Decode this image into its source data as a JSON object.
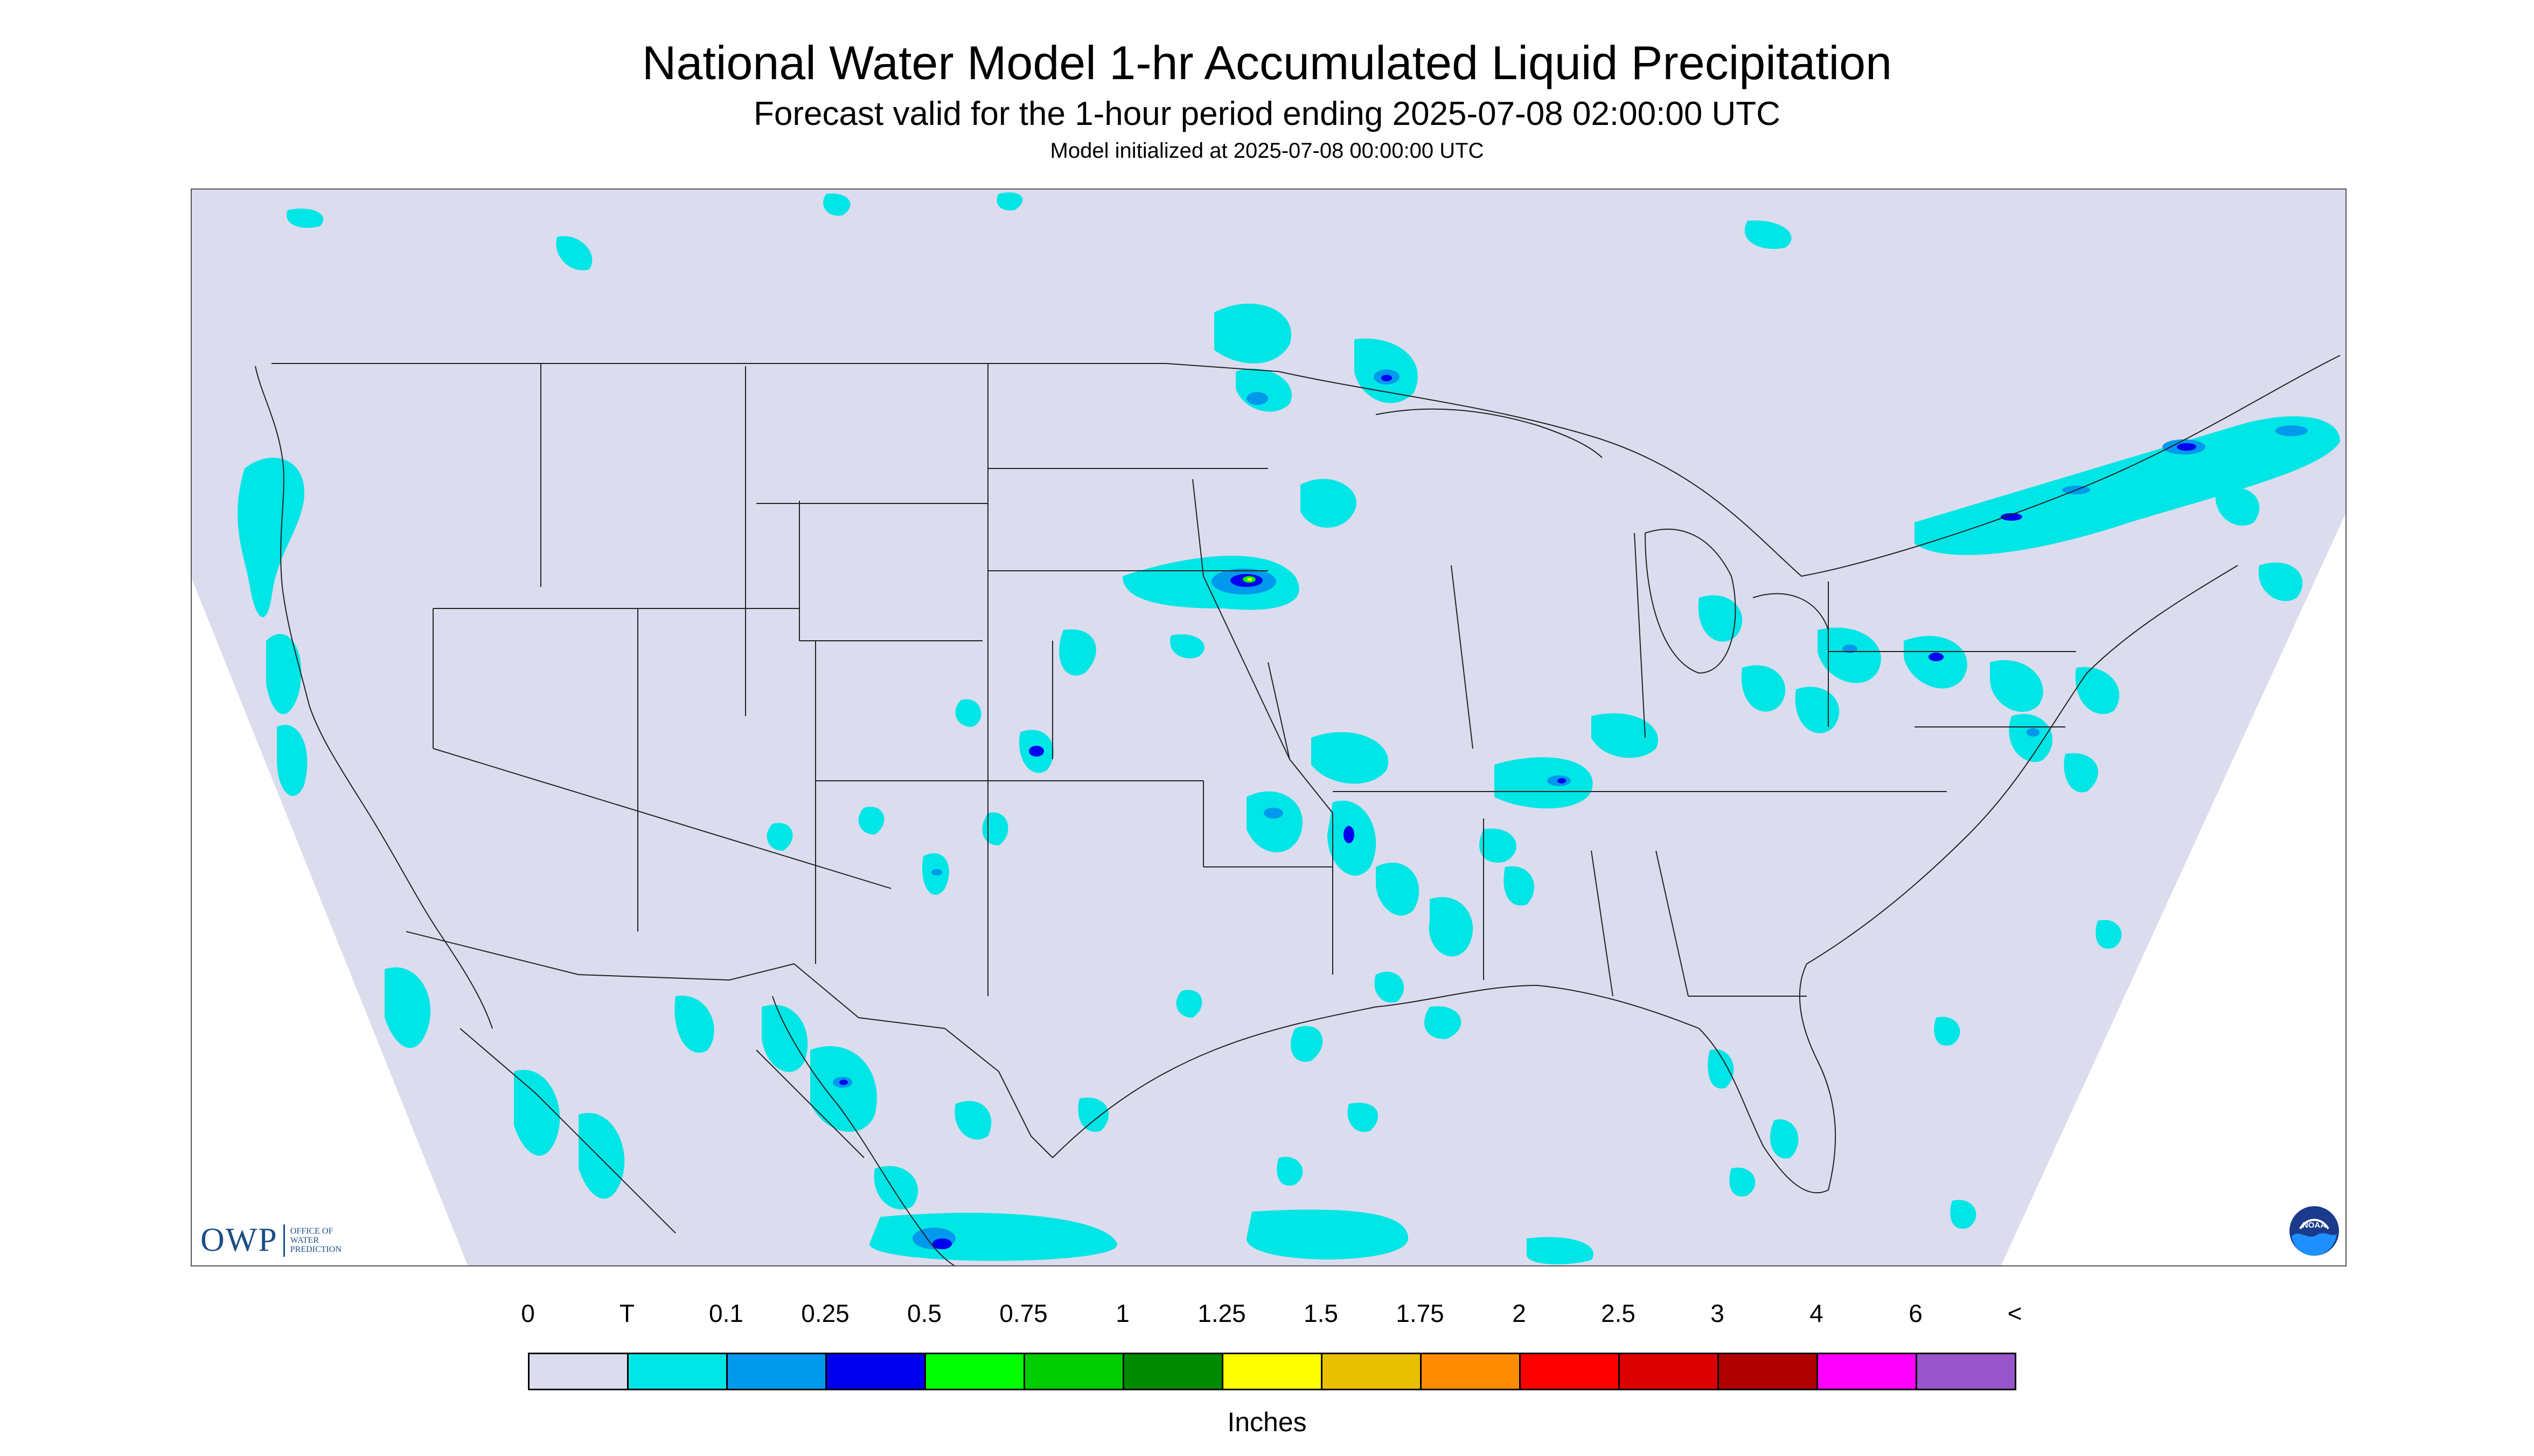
{
  "header": {
    "title": "National Water Model 1-hr Accumulated Liquid Precipitation",
    "subtitle": "Forecast valid for the 1-hour period ending 2025-07-08 02:00:00 UTC",
    "init_line": "Model initialized at 2025-07-08 00:00:00 UTC"
  },
  "map": {
    "background_color": "#dcdcef",
    "boundary_color": "#222222",
    "region": "Continental United States",
    "projection": "Lambert Conformal",
    "precip_areas": [
      {
        "name": "Pacific Northwest coast",
        "intensity": "trace"
      },
      {
        "name": "Northern Minnesota",
        "intensity": "moderate"
      },
      {
        "name": "Lake Superior north shore",
        "intensity": "moderate"
      },
      {
        "name": "Northeast Nebraska / Southeast South Dakota",
        "intensity": "heavy"
      },
      {
        "name": "Eastern Colorado",
        "intensity": "light"
      },
      {
        "name": "New Mexico",
        "intensity": "light"
      },
      {
        "name": "Arkansas / Mississippi Valley",
        "intensity": "moderate"
      },
      {
        "name": "Kentucky / Tennessee",
        "intensity": "moderate"
      },
      {
        "name": "Pennsylvania / New York",
        "intensity": "moderate"
      },
      {
        "name": "Northern Maine / Quebec",
        "intensity": "moderate"
      },
      {
        "name": "Northern Mexico",
        "intensity": "light"
      },
      {
        "name": "Southern Florida",
        "intensity": "light"
      },
      {
        "name": "Gulf of Mexico",
        "intensity": "light"
      }
    ]
  },
  "legend": {
    "labels": [
      "0",
      "T",
      "0.1",
      "0.25",
      "0.5",
      "0.75",
      "1",
      "1.25",
      "1.5",
      "1.75",
      "2",
      "2.5",
      "3",
      "4",
      "6",
      "<"
    ],
    "colors": [
      "#dcdcef",
      "#00e5e5",
      "#0099ee",
      "#0000ee",
      "#00ff00",
      "#00cc00",
      "#008b00",
      "#ffff00",
      "#e8c000",
      "#ff8c00",
      "#ff0000",
      "#dd0000",
      "#b00000",
      "#ff00ff",
      "#9955cc"
    ],
    "units": "Inches"
  },
  "logos": {
    "owp_mark": "OWP",
    "owp_text": [
      "OFFICE OF",
      "WATER",
      "PREDICTION"
    ],
    "noaa_text": "NOAA"
  }
}
